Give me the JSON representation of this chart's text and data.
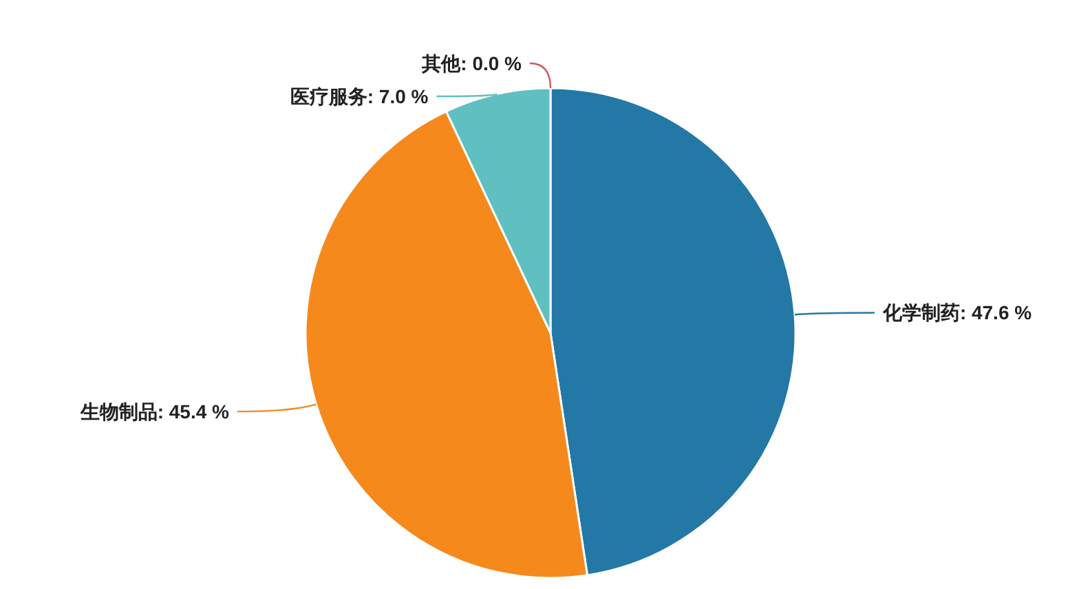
{
  "chart_data": {
    "type": "pie",
    "categories": [
      "化学制药",
      "生物制品",
      "医疗服务",
      "其他"
    ],
    "values": [
      47.6,
      45.4,
      7.0,
      0.0
    ],
    "value_labels": [
      "47.6 %",
      "45.4 %",
      "7.0 %",
      "0.0 %"
    ],
    "colors": [
      "#2378a6",
      "#f5891c",
      "#60bfc1",
      "#d0595a"
    ]
  }
}
